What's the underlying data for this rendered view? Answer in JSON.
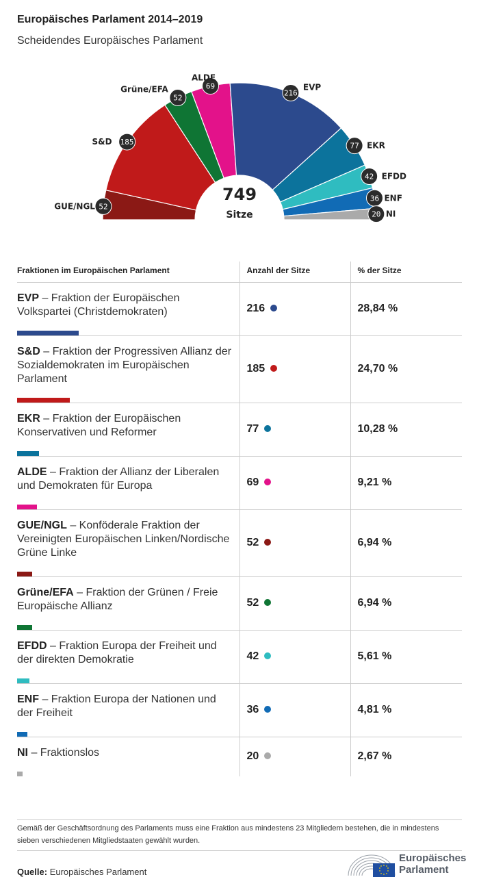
{
  "header": {
    "title": "Europäisches Parlament 2014–2019",
    "subtitle": "Scheidendes Europäisches Parlament"
  },
  "chart_data": {
    "type": "pie",
    "variant": "parliament-semicircle",
    "title": "Scheidendes Europäisches Parlament",
    "total": 749,
    "total_label": "Sitze",
    "order": "clockwise-from-left",
    "series": [
      {
        "name": "GUE/NGL",
        "value": 52,
        "color": "#8b1915"
      },
      {
        "name": "S&D",
        "value": 185,
        "color": "#c01a1a"
      },
      {
        "name": "Grüne/EFA",
        "value": 52,
        "color": "#0f7534"
      },
      {
        "name": "ALDE",
        "value": 69,
        "color": "#e3128a"
      },
      {
        "name": "EVP",
        "value": 216,
        "color": "#2c4a8d"
      },
      {
        "name": "EKR",
        "value": 77,
        "color": "#0c739c"
      },
      {
        "name": "EFDD",
        "value": 42,
        "color": "#2fbcc0"
      },
      {
        "name": "ENF",
        "value": 36,
        "color": "#116bb5"
      },
      {
        "name": "NI",
        "value": 20,
        "color": "#aaaaaa"
      }
    ]
  },
  "table": {
    "headers": [
      "Fraktionen im Europäischen Parlament",
      "Anzahl der Sitze",
      "% der Sitze"
    ],
    "rows": [
      {
        "abbr": "EVP",
        "desc": " – Fraktion der Europäischen Volkspartei (Christdemokraten)",
        "seats": "216",
        "percent": "28,84 %",
        "share": 0.2884,
        "color": "#2c4a8d"
      },
      {
        "abbr": "S&D",
        "desc": " – Fraktion der Progressiven Allianz der Sozialdemokraten im Europäischen Parlament",
        "seats": "185",
        "percent": "24,70 %",
        "share": 0.247,
        "color": "#c01a1a"
      },
      {
        "abbr": "EKR",
        "desc": " – Fraktion der Europäischen Konservativen und Reformer",
        "seats": "77",
        "percent": "10,28 %",
        "share": 0.1028,
        "color": "#0c739c"
      },
      {
        "abbr": "ALDE",
        "desc": " – Fraktion der Allianz der Liberalen und Demokraten für Europa",
        "seats": "69",
        "percent": "9,21 %",
        "share": 0.0921,
        "color": "#e3128a"
      },
      {
        "abbr": "GUE/NGL",
        "desc": " – Konföderale Fraktion der Vereinigten Europäischen Linken/Nordische Grüne Linke",
        "seats": "52",
        "percent": "6,94 %",
        "share": 0.0694,
        "color": "#8b1915"
      },
      {
        "abbr": "Grüne/EFA",
        "desc": " – Fraktion der Grünen / Freie Europäische Allianz",
        "seats": "52",
        "percent": "6,94 %",
        "share": 0.0694,
        "color": "#0f7534"
      },
      {
        "abbr": "EFDD",
        "desc": " – Fraktion Europa der Freiheit und der direkten Demokratie",
        "seats": "42",
        "percent": "5,61 %",
        "share": 0.0561,
        "color": "#2fbcc0"
      },
      {
        "abbr": "ENF",
        "desc": " – Fraktion Europa der Nationen und der Freiheit",
        "seats": "36",
        "percent": "4,81 %",
        "share": 0.0481,
        "color": "#116bb5"
      },
      {
        "abbr": "NI",
        "desc": " – Fraktionslos",
        "seats": "20",
        "percent": "2,67 %",
        "share": 0.0267,
        "color": "#aaaaaa"
      }
    ]
  },
  "footer": {
    "note": "Gemäß der Geschäftsordnung des Parlaments muss eine Fraktion aus mindestens 23 Mitgliedern bestehen, die in mindestens sieben verschiedenen Mitgliedstaaten gewählt wurden.",
    "source_label": "Quelle:",
    "source_value": " Europäisches Parlament",
    "logo_line1": "Europäisches",
    "logo_line2": "Parlament"
  }
}
